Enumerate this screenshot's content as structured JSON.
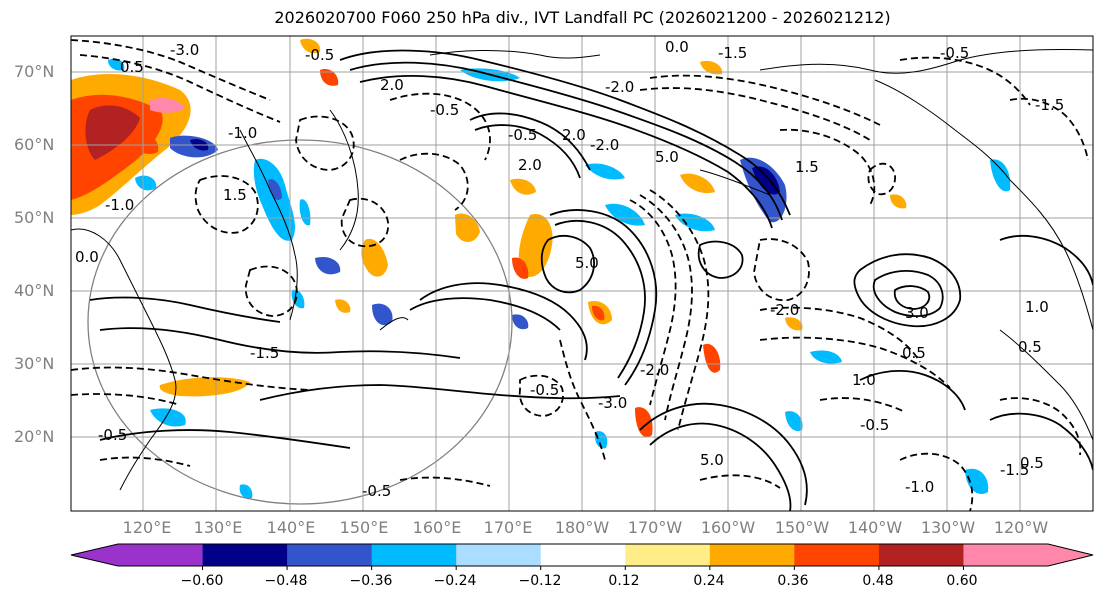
{
  "title": "2026020700 F060 250 hPa div., IVT Landfall PC (2026021200 - 2026021212)",
  "map": {
    "lat_labels": [
      "70°N",
      "60°N",
      "50°N",
      "40°N",
      "30°N",
      "20°N"
    ],
    "lon_labels": [
      "120°E",
      "130°E",
      "140°E",
      "150°E",
      "160°E",
      "170°E",
      "180°W",
      "170°W",
      "160°W",
      "150°W",
      "140°W",
      "130°W",
      "120°W"
    ],
    "contour_labels": [
      "-3.0",
      "0.5",
      "0.0",
      "-1.5",
      "-0.5",
      "-1.0",
      "1.5",
      "2.0",
      "-0.5",
      "5.0",
      "1.5",
      "-2.0",
      "0.5",
      "1.0",
      "-3.0",
      "-0.5",
      "3.0",
      "-1.0",
      "-0.5",
      "-1.5",
      "-0.5",
      "0.5",
      "1.0",
      "-0.5",
      "-1.5",
      "-1.0",
      "0.5",
      "-0.5",
      "2.0",
      "0.0",
      "-2.0",
      "5.0",
      "-0.5",
      "-1.5",
      "-2.0",
      "5.0",
      "-2.0",
      "2.0"
    ],
    "colors": {
      "coast": "#000000",
      "grid": "#a0a0a0",
      "circle": "#808080"
    }
  },
  "colorbar": {
    "colors": [
      "#9933cc",
      "#000088",
      "#3355cc",
      "#00bbff",
      "#aaddff",
      "#ffffff",
      "#ffee88",
      "#ffaa00",
      "#ff4400",
      "#b22222",
      "#ff88aa"
    ],
    "ticks": [
      "−0.60",
      "−0.48",
      "−0.36",
      "−0.24",
      "−0.12",
      "0.12",
      "0.24",
      "0.36",
      "0.48",
      "0.60"
    ]
  }
}
